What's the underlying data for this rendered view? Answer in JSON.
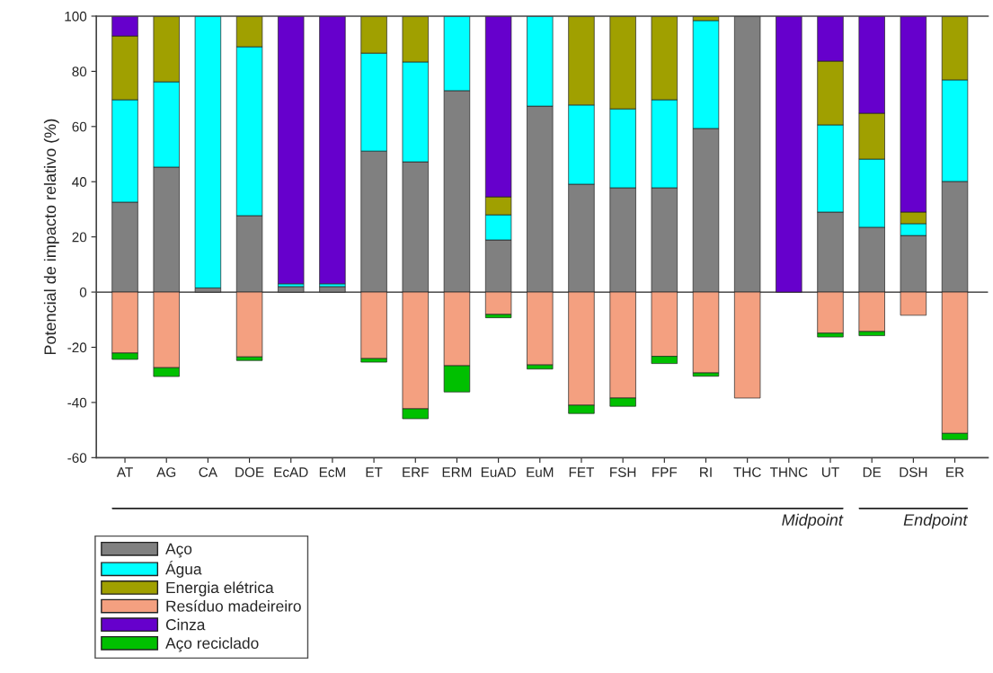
{
  "chart_data": {
    "type": "bar",
    "stacked": true,
    "ylabel": "Potencial de impacto relativo (%)",
    "categories": [
      "AT",
      "AG",
      "CA",
      "DOE",
      "EcAD",
      "EcM",
      "ET",
      "ERF",
      "ERM",
      "EuAD",
      "EuM",
      "FET",
      "FSH",
      "FPF",
      "RI",
      "THC",
      "THNC",
      "UT",
      "DE",
      "DSH",
      "ER"
    ],
    "series": [
      {
        "name": "Aço",
        "color": "#808080",
        "values": [
          32.6,
          45.3,
          1.5,
          27.7,
          2,
          2,
          51.1,
          47.2,
          73.0,
          18.9,
          67.4,
          39.1,
          37.8,
          37.8,
          59.3,
          100,
          0,
          29.0,
          23.5,
          20.5,
          40.1
        ]
      },
      {
        "name": "Água",
        "color": "#00ffff",
        "values": [
          37.1,
          30.9,
          98.5,
          61.2,
          1,
          1,
          35.5,
          36.2,
          27.0,
          9.1,
          32.6,
          28.7,
          28.6,
          31.9,
          39.1,
          0,
          0,
          31.6,
          24.7,
          4.3,
          36.8
        ]
      },
      {
        "name": "Energia elétrica",
        "color": "#a0a000",
        "values": [
          23.1,
          23.8,
          null,
          11.1,
          0,
          0,
          13.4,
          16.6,
          0,
          6.5,
          0,
          32.2,
          33.6,
          30.3,
          1.6,
          0,
          0,
          23.1,
          16.6,
          4.2,
          23.1
        ]
      },
      {
        "name": "Resíduo madeireiro",
        "color": "#f4a080",
        "values": [
          -22.1,
          -27.4,
          0,
          -23.5,
          0,
          0,
          -24.1,
          -42.3,
          -26.7,
          -8.1,
          -26.4,
          -41.0,
          -38.4,
          -23.3,
          -29.3,
          -38.4,
          0,
          -14.9,
          -14.3,
          -8.4,
          -51.2
        ]
      },
      {
        "name": "Cinza",
        "color": "#6600cc",
        "values": [
          7.2,
          0,
          0,
          0,
          97,
          97,
          0,
          0,
          0,
          65.5,
          0,
          0,
          0,
          0,
          0,
          0,
          100,
          16.3,
          35.2,
          71,
          0
        ]
      },
      {
        "name": "Aço reciclado",
        "color": "#00c000",
        "values": [
          -2.3,
          -3.2,
          0,
          -1.3,
          0,
          0,
          -1.3,
          -3.6,
          -9.5,
          -1.2,
          -1.5,
          -3.0,
          -3.0,
          -2.6,
          -1.2,
          0,
          0,
          -1.4,
          -1.5,
          0,
          -2.3
        ]
      }
    ],
    "ylim": [
      -60,
      100
    ],
    "yticks": [
      -60,
      -40,
      -20,
      0,
      20,
      40,
      60,
      80,
      100
    ],
    "ref_lines": [
      {
        "axis": "y",
        "value": 0
      }
    ],
    "annotations": [
      "Midpoint",
      "Endpoint"
    ],
    "legend": "bottom left",
    "grid": false
  }
}
